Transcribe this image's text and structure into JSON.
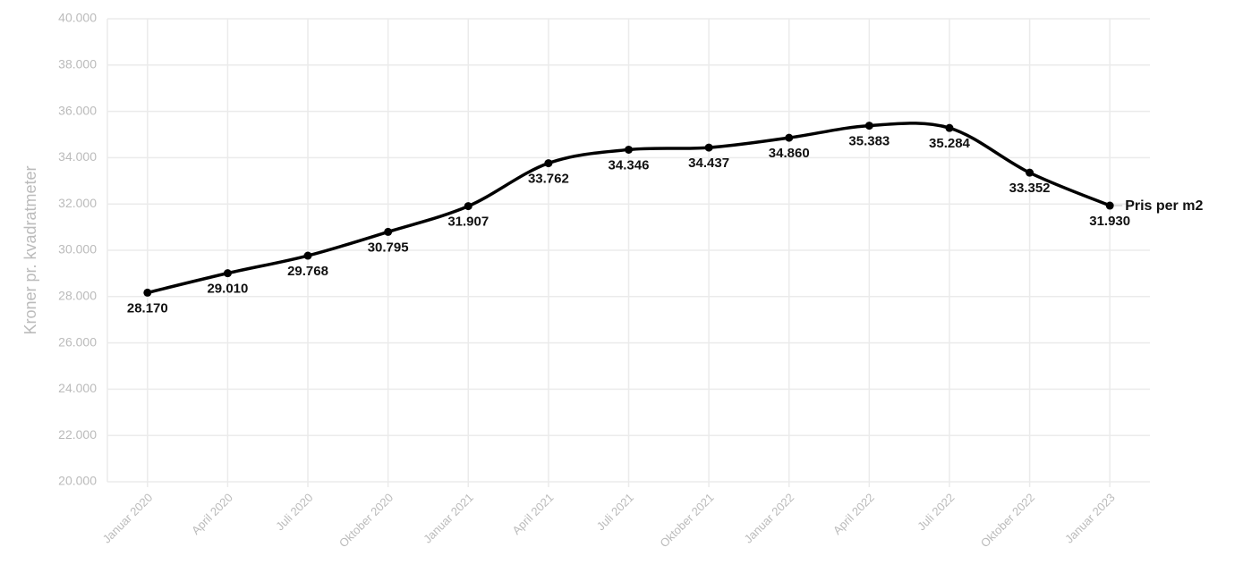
{
  "chart_data": {
    "type": "line",
    "y_label": "Kroner pr. kvadratmeter",
    "categories": [
      "Januar 2020",
      "April 2020",
      "Juli 2020",
      "Oktober 2020",
      "Januar 2021",
      "April 2021",
      "Juli 2021",
      "Oktober 2021",
      "Januar 2022",
      "April 2022",
      "Juli 2022",
      "Oktober 2022",
      "Januar 2023"
    ],
    "series": [
      {
        "name": "Pris per m2",
        "color": "#000000",
        "values": [
          28170,
          29010,
          29768,
          30795,
          31907,
          33762,
          34346,
          34437,
          34860,
          35383,
          35284,
          33352,
          31930
        ],
        "value_labels": [
          "28.170",
          "29.010",
          "29.768",
          "30.795",
          "31.907",
          "33.762",
          "34.346",
          "34.437",
          "34.860",
          "35.383",
          "35.284",
          "33.352",
          "31.930"
        ]
      }
    ],
    "ylim": [
      20000,
      40000
    ],
    "yticks": [
      {
        "value": 20000,
        "label": "20.000"
      },
      {
        "value": 22000,
        "label": "22.000"
      },
      {
        "value": 24000,
        "label": "24.000"
      },
      {
        "value": 26000,
        "label": "26.000"
      },
      {
        "value": 28000,
        "label": "28.000"
      },
      {
        "value": 30000,
        "label": "30.000"
      },
      {
        "value": 32000,
        "label": "32.000"
      },
      {
        "value": 34000,
        "label": "34.000"
      },
      {
        "value": 36000,
        "label": "36.000"
      },
      {
        "value": 38000,
        "label": "38.000"
      },
      {
        "value": 40000,
        "label": "40.000"
      }
    ],
    "grid": true
  }
}
